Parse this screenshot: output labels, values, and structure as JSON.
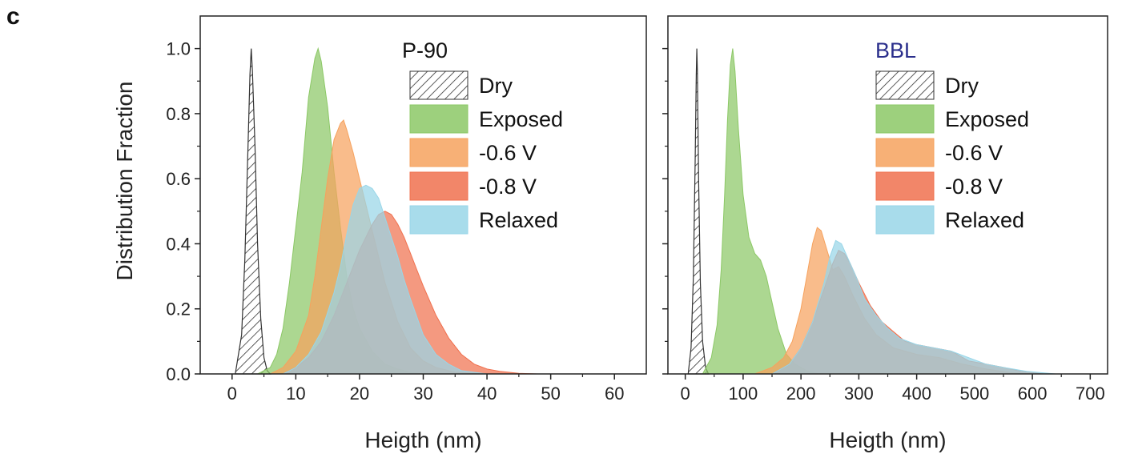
{
  "figure": {
    "panel_letter": "c",
    "ylabel": "Distribution Fraction"
  },
  "chart_data": [
    {
      "type": "area",
      "title": "P-90",
      "title_color": "#111111",
      "xlabel": "Heigth (nm)",
      "ylabel": "Distribution Fraction",
      "xlim": [
        -5,
        65
      ],
      "ylim": [
        0,
        1.1
      ],
      "xticks": [
        0,
        10,
        20,
        30,
        40,
        50,
        60
      ],
      "yticks": [
        "0.0",
        "0.2",
        "0.4",
        "0.6",
        "0.8",
        "1.0"
      ],
      "legend_position": "top-right",
      "series": [
        {
          "name": "Dry",
          "color": "#333333",
          "fill": "hatch",
          "x": [
            0.5,
            1.5,
            2.0,
            2.5,
            2.8,
            3.0,
            3.2,
            3.6,
            4.0,
            4.5,
            5.0,
            5.5,
            6.0
          ],
          "y": [
            0.0,
            0.12,
            0.35,
            0.7,
            0.92,
            1.0,
            0.93,
            0.7,
            0.4,
            0.17,
            0.05,
            0.01,
            0.0
          ]
        },
        {
          "name": "Exposed",
          "color": "#8cc866",
          "fill": "solid",
          "x": [
            4,
            6,
            7,
            8,
            9,
            10,
            11,
            12,
            13,
            13.5,
            14,
            15,
            16,
            17,
            18,
            19,
            20,
            22,
            24,
            26,
            28,
            30
          ],
          "y": [
            0.0,
            0.02,
            0.06,
            0.14,
            0.28,
            0.45,
            0.62,
            0.85,
            0.97,
            1.0,
            0.96,
            0.82,
            0.62,
            0.45,
            0.3,
            0.2,
            0.14,
            0.07,
            0.03,
            0.015,
            0.005,
            0.0
          ]
        },
        {
          "name": "-0.6 V",
          "color": "#f6a25e",
          "fill": "solid",
          "x": [
            6,
            8,
            10,
            12,
            13,
            14,
            15,
            16,
            17,
            17.5,
            18,
            19,
            20,
            21,
            22,
            23,
            24,
            26,
            28,
            30,
            32,
            35,
            40
          ],
          "y": [
            0.0,
            0.02,
            0.07,
            0.18,
            0.3,
            0.45,
            0.6,
            0.72,
            0.77,
            0.78,
            0.75,
            0.68,
            0.6,
            0.52,
            0.44,
            0.36,
            0.28,
            0.16,
            0.08,
            0.04,
            0.02,
            0.005,
            0.0
          ]
        },
        {
          "name": "-0.8 V",
          "color": "#f0714f",
          "fill": "solid",
          "x": [
            8,
            10,
            12,
            14,
            16,
            18,
            20,
            22,
            23,
            24,
            25,
            26,
            27,
            28,
            29,
            30,
            32,
            34,
            36,
            38,
            40,
            42,
            45,
            48
          ],
          "y": [
            0.0,
            0.02,
            0.05,
            0.1,
            0.18,
            0.28,
            0.38,
            0.46,
            0.49,
            0.5,
            0.49,
            0.46,
            0.42,
            0.37,
            0.32,
            0.27,
            0.18,
            0.11,
            0.06,
            0.03,
            0.015,
            0.008,
            0.002,
            0.0
          ]
        },
        {
          "name": "Relaxed",
          "color": "#99d6e8",
          "fill": "solid",
          "x": [
            8,
            10,
            12,
            14,
            16,
            17,
            18,
            19,
            20,
            21,
            22,
            23,
            24,
            25,
            26,
            27,
            28,
            30,
            32,
            34,
            36,
            40
          ],
          "y": [
            0.0,
            0.02,
            0.06,
            0.13,
            0.25,
            0.33,
            0.43,
            0.52,
            0.57,
            0.58,
            0.57,
            0.54,
            0.48,
            0.42,
            0.36,
            0.29,
            0.23,
            0.12,
            0.06,
            0.03,
            0.01,
            0.0
          ]
        }
      ]
    },
    {
      "type": "area",
      "title": "BBL",
      "title_color": "#2b2f8c",
      "xlabel": "Heigth (nm)",
      "ylabel": "",
      "xlim": [
        -30,
        730
      ],
      "ylim": [
        0,
        1.1
      ],
      "xticks": [
        0,
        100,
        200,
        300,
        400,
        500,
        600,
        700
      ],
      "yticks": [],
      "legend_position": "top-right",
      "series": [
        {
          "name": "Dry",
          "color": "#333333",
          "fill": "hatch",
          "x": [
            5,
            10,
            14,
            17,
            19,
            20,
            21,
            23,
            26,
            30,
            35,
            40
          ],
          "y": [
            0.0,
            0.08,
            0.3,
            0.65,
            0.92,
            1.0,
            0.93,
            0.6,
            0.28,
            0.1,
            0.02,
            0.0
          ]
        },
        {
          "name": "Exposed",
          "color": "#8cc866",
          "fill": "solid",
          "x": [
            30,
            45,
            55,
            62,
            68,
            73,
            78,
            82,
            86,
            92,
            100,
            110,
            120,
            130,
            140,
            150,
            160,
            175,
            190,
            210,
            230
          ],
          "y": [
            0.0,
            0.05,
            0.15,
            0.32,
            0.55,
            0.78,
            0.95,
            1.0,
            0.93,
            0.75,
            0.55,
            0.42,
            0.37,
            0.35,
            0.3,
            0.22,
            0.14,
            0.06,
            0.03,
            0.01,
            0.0
          ]
        },
        {
          "name": "-0.6 V",
          "color": "#f6a25e",
          "fill": "solid",
          "x": [
            120,
            150,
            170,
            185,
            200,
            210,
            220,
            228,
            235,
            245,
            255,
            265,
            275,
            290,
            310,
            330,
            360,
            400,
            440,
            480,
            520,
            560,
            600
          ],
          "y": [
            0.0,
            0.02,
            0.05,
            0.1,
            0.2,
            0.3,
            0.4,
            0.45,
            0.44,
            0.38,
            0.32,
            0.33,
            0.3,
            0.24,
            0.17,
            0.12,
            0.08,
            0.06,
            0.05,
            0.03,
            0.015,
            0.005,
            0.0
          ]
        },
        {
          "name": "-0.8 V",
          "color": "#f0714f",
          "fill": "solid",
          "x": [
            150,
            180,
            200,
            220,
            240,
            255,
            265,
            275,
            285,
            300,
            320,
            340,
            360,
            380,
            400,
            430,
            460,
            490,
            520,
            550,
            580,
            620
          ],
          "y": [
            0.0,
            0.03,
            0.08,
            0.16,
            0.26,
            0.34,
            0.38,
            0.37,
            0.34,
            0.28,
            0.21,
            0.16,
            0.13,
            0.1,
            0.09,
            0.08,
            0.07,
            0.04,
            0.03,
            0.02,
            0.008,
            0.0
          ]
        },
        {
          "name": "Relaxed",
          "color": "#99d6e8",
          "fill": "solid",
          "x": [
            150,
            180,
            200,
            220,
            240,
            250,
            260,
            270,
            280,
            295,
            310,
            330,
            350,
            370,
            400,
            430,
            460,
            490,
            520,
            550,
            590,
            640
          ],
          "y": [
            0.0,
            0.03,
            0.08,
            0.16,
            0.28,
            0.36,
            0.41,
            0.4,
            0.36,
            0.3,
            0.23,
            0.18,
            0.14,
            0.11,
            0.09,
            0.08,
            0.07,
            0.05,
            0.03,
            0.02,
            0.008,
            0.0
          ]
        }
      ]
    }
  ]
}
